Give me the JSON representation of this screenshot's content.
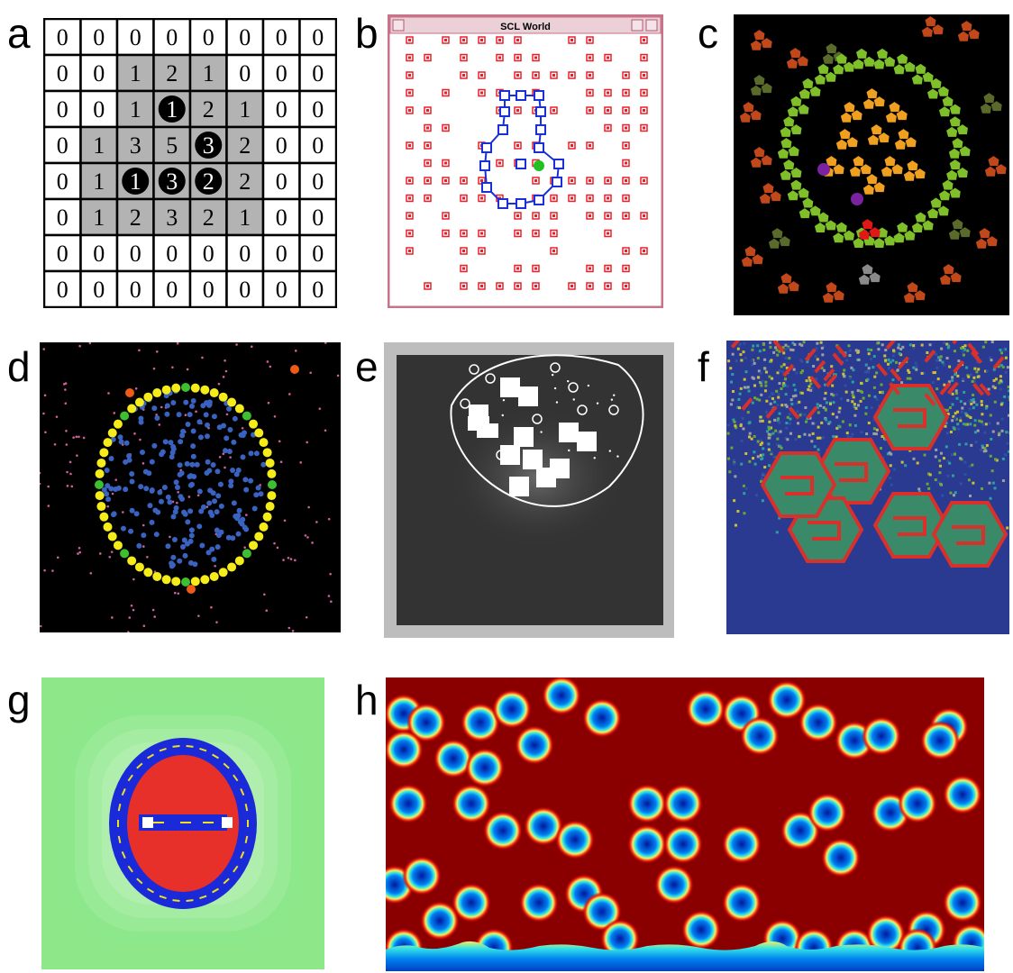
{
  "labels": [
    "a",
    "b",
    "c",
    "d",
    "e",
    "f",
    "g",
    "h"
  ],
  "panel_a": {
    "grid": [
      [
        "0",
        "0",
        "0",
        "0",
        "0",
        "0",
        "0",
        "0"
      ],
      [
        "0",
        "0",
        "1",
        "2",
        "1",
        "0",
        "0",
        "0"
      ],
      [
        "0",
        "0",
        "1",
        "1",
        "2",
        "1",
        "0",
        "0"
      ],
      [
        "0",
        "1",
        "3",
        "5",
        "3",
        "2",
        "0",
        "0"
      ],
      [
        "0",
        "1",
        "1",
        "3",
        "2",
        "2",
        "0",
        "0"
      ],
      [
        "0",
        "1",
        "2",
        "3",
        "2",
        "1",
        "0",
        "0"
      ],
      [
        "0",
        "0",
        "0",
        "0",
        "0",
        "0",
        "0",
        "0"
      ],
      [
        "0",
        "0",
        "0",
        "0",
        "0",
        "0",
        "0",
        "0"
      ]
    ],
    "shaded": [
      [
        1,
        2
      ],
      [
        1,
        3
      ],
      [
        1,
        4
      ],
      [
        2,
        2
      ],
      [
        2,
        3
      ],
      [
        2,
        4
      ],
      [
        2,
        5
      ],
      [
        3,
        1
      ],
      [
        3,
        2
      ],
      [
        3,
        3
      ],
      [
        3,
        4
      ],
      [
        3,
        5
      ],
      [
        4,
        1
      ],
      [
        4,
        2
      ],
      [
        4,
        3
      ],
      [
        4,
        4
      ],
      [
        4,
        5
      ],
      [
        5,
        1
      ],
      [
        5,
        2
      ],
      [
        5,
        3
      ],
      [
        5,
        4
      ],
      [
        5,
        5
      ]
    ],
    "circled": [
      [
        2,
        3
      ],
      [
        3,
        4
      ],
      [
        4,
        2
      ],
      [
        4,
        3
      ],
      [
        4,
        4
      ]
    ],
    "colors": {
      "shade": "#b3b3b3",
      "circle": "#000000",
      "circle_text": "#ffffff"
    }
  },
  "panel_b": {
    "window_title": "SCL World",
    "colors": {
      "frame": "#c9738a",
      "dot": "#e8202a",
      "shape": "#1a2fd6",
      "green": "#22c022"
    }
  },
  "panel_c": {
    "colors": {
      "green": "#7fbf2a",
      "orange": "#f0a020",
      "rust": "#c0481a",
      "olive": "#5a6a2a",
      "purple": "#7a22a0",
      "red": "#e01818"
    }
  },
  "panel_d": {
    "colors": {
      "yellow": "#f5ec1a",
      "green": "#3cc030",
      "blue": "#3a62c0",
      "orange": "#f05a18",
      "pink": "#d0609a"
    }
  },
  "panel_e": {
    "colors": {
      "frame": "#bdbdbd",
      "bg": "#333333",
      "white": "#ffffff"
    }
  },
  "panel_f": {
    "colors": {
      "blue": "#2a3a90",
      "red": "#d8302a",
      "green": "#6aa832"
    }
  },
  "panel_g": {
    "colors": {
      "green": "#8ee88a",
      "red": "#e8302a",
      "blue": "#1a2ad8",
      "yellow": "#f0e020"
    }
  },
  "panel_h": {
    "colors": {
      "bg": "#8a0000",
      "blob": "#0070e0"
    }
  }
}
